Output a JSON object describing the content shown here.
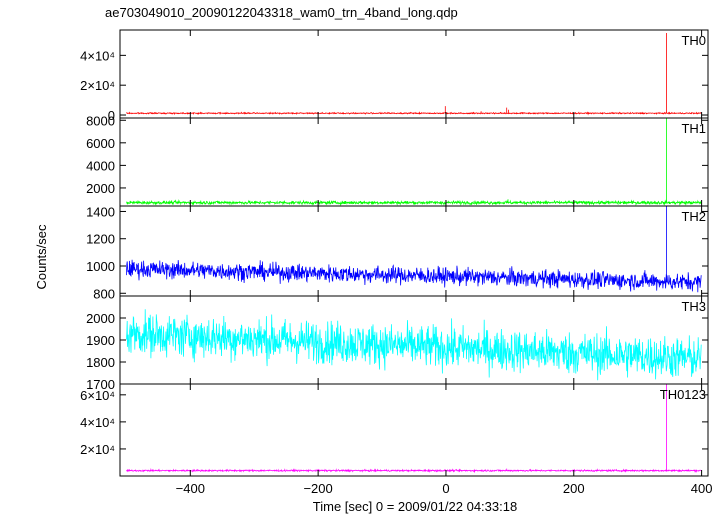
{
  "chart_data": {
    "type": "line",
    "title": "ae703049010_20090122043318_wam0_trn_4band_long.qdp",
    "xlabel": "Time [sec] 0 = 2009/01/22 04:33:18",
    "ylabel": "Counts/sec",
    "xlim": [
      -510,
      410
    ],
    "x_ticks": [
      -400,
      -200,
      0,
      200,
      400
    ],
    "x_tick_labels": [
      "−400",
      "−200",
      "0",
      "200",
      "400"
    ],
    "legend": "each panel labelled at top-right",
    "grid": false,
    "panels": [
      {
        "name": "TH0",
        "color": "#ff0000",
        "ylim": [
          -2000,
          57000
        ],
        "y_ticks": [
          0,
          20000,
          40000
        ],
        "y_tick_labels": [
          "0",
          "2×10⁴",
          "4×10⁴"
        ],
        "baseline": 1200,
        "noise": 200,
        "spikes": [
          [
            -1,
            6000
          ],
          [
            55,
            2500
          ],
          [
            95,
            5000
          ],
          [
            98,
            3500
          ],
          [
            120,
            2000
          ],
          [
            300,
            1500
          ],
          [
            345,
            55000
          ]
        ]
      },
      {
        "name": "TH1",
        "color": "#00ff00",
        "ylim": [
          400,
          8200
        ],
        "y_ticks": [
          2000,
          4000,
          6000,
          8000
        ],
        "y_tick_labels": [
          "2000",
          "4000",
          "6000",
          "8000"
        ],
        "baseline": 700,
        "noise": 70,
        "spikes": [
          [
            97,
            1000
          ],
          [
            345,
            8200
          ]
        ]
      },
      {
        "name": "TH2",
        "color": "#0000ff",
        "ylim": [
          780,
          1440
        ],
        "y_ticks": [
          800,
          1000,
          1200,
          1400
        ],
        "y_tick_labels": [
          "800",
          "1000",
          "1200",
          "1400"
        ],
        "trend": [
          [
            -500,
            980
          ],
          [
            400,
            880
          ]
        ],
        "noise": 32,
        "spikes": [
          [
            345,
            1440
          ]
        ]
      },
      {
        "name": "TH3",
        "color": "#00ffff",
        "ylim": [
          1700,
          2100
        ],
        "y_ticks": [
          1700,
          1800,
          1900,
          2000
        ],
        "y_tick_labels": [
          "1700",
          "1800",
          "1900",
          "2000"
        ],
        "trend": [
          [
            -500,
            1930
          ],
          [
            400,
            1815
          ]
        ],
        "noise": 48,
        "spikes": []
      },
      {
        "name": "TH0123",
        "color": "#ff00ff",
        "ylim": [
          0,
          68000
        ],
        "y_ticks": [
          20000,
          40000,
          60000
        ],
        "y_tick_labels": [
          "2×10⁴",
          "4×10⁴",
          "6×10⁴"
        ],
        "baseline": 4000,
        "noise": 300,
        "spikes": [
          [
            -1,
            4500
          ],
          [
            95,
            5500
          ],
          [
            98,
            4500
          ],
          [
            345,
            68000
          ]
        ]
      }
    ]
  }
}
